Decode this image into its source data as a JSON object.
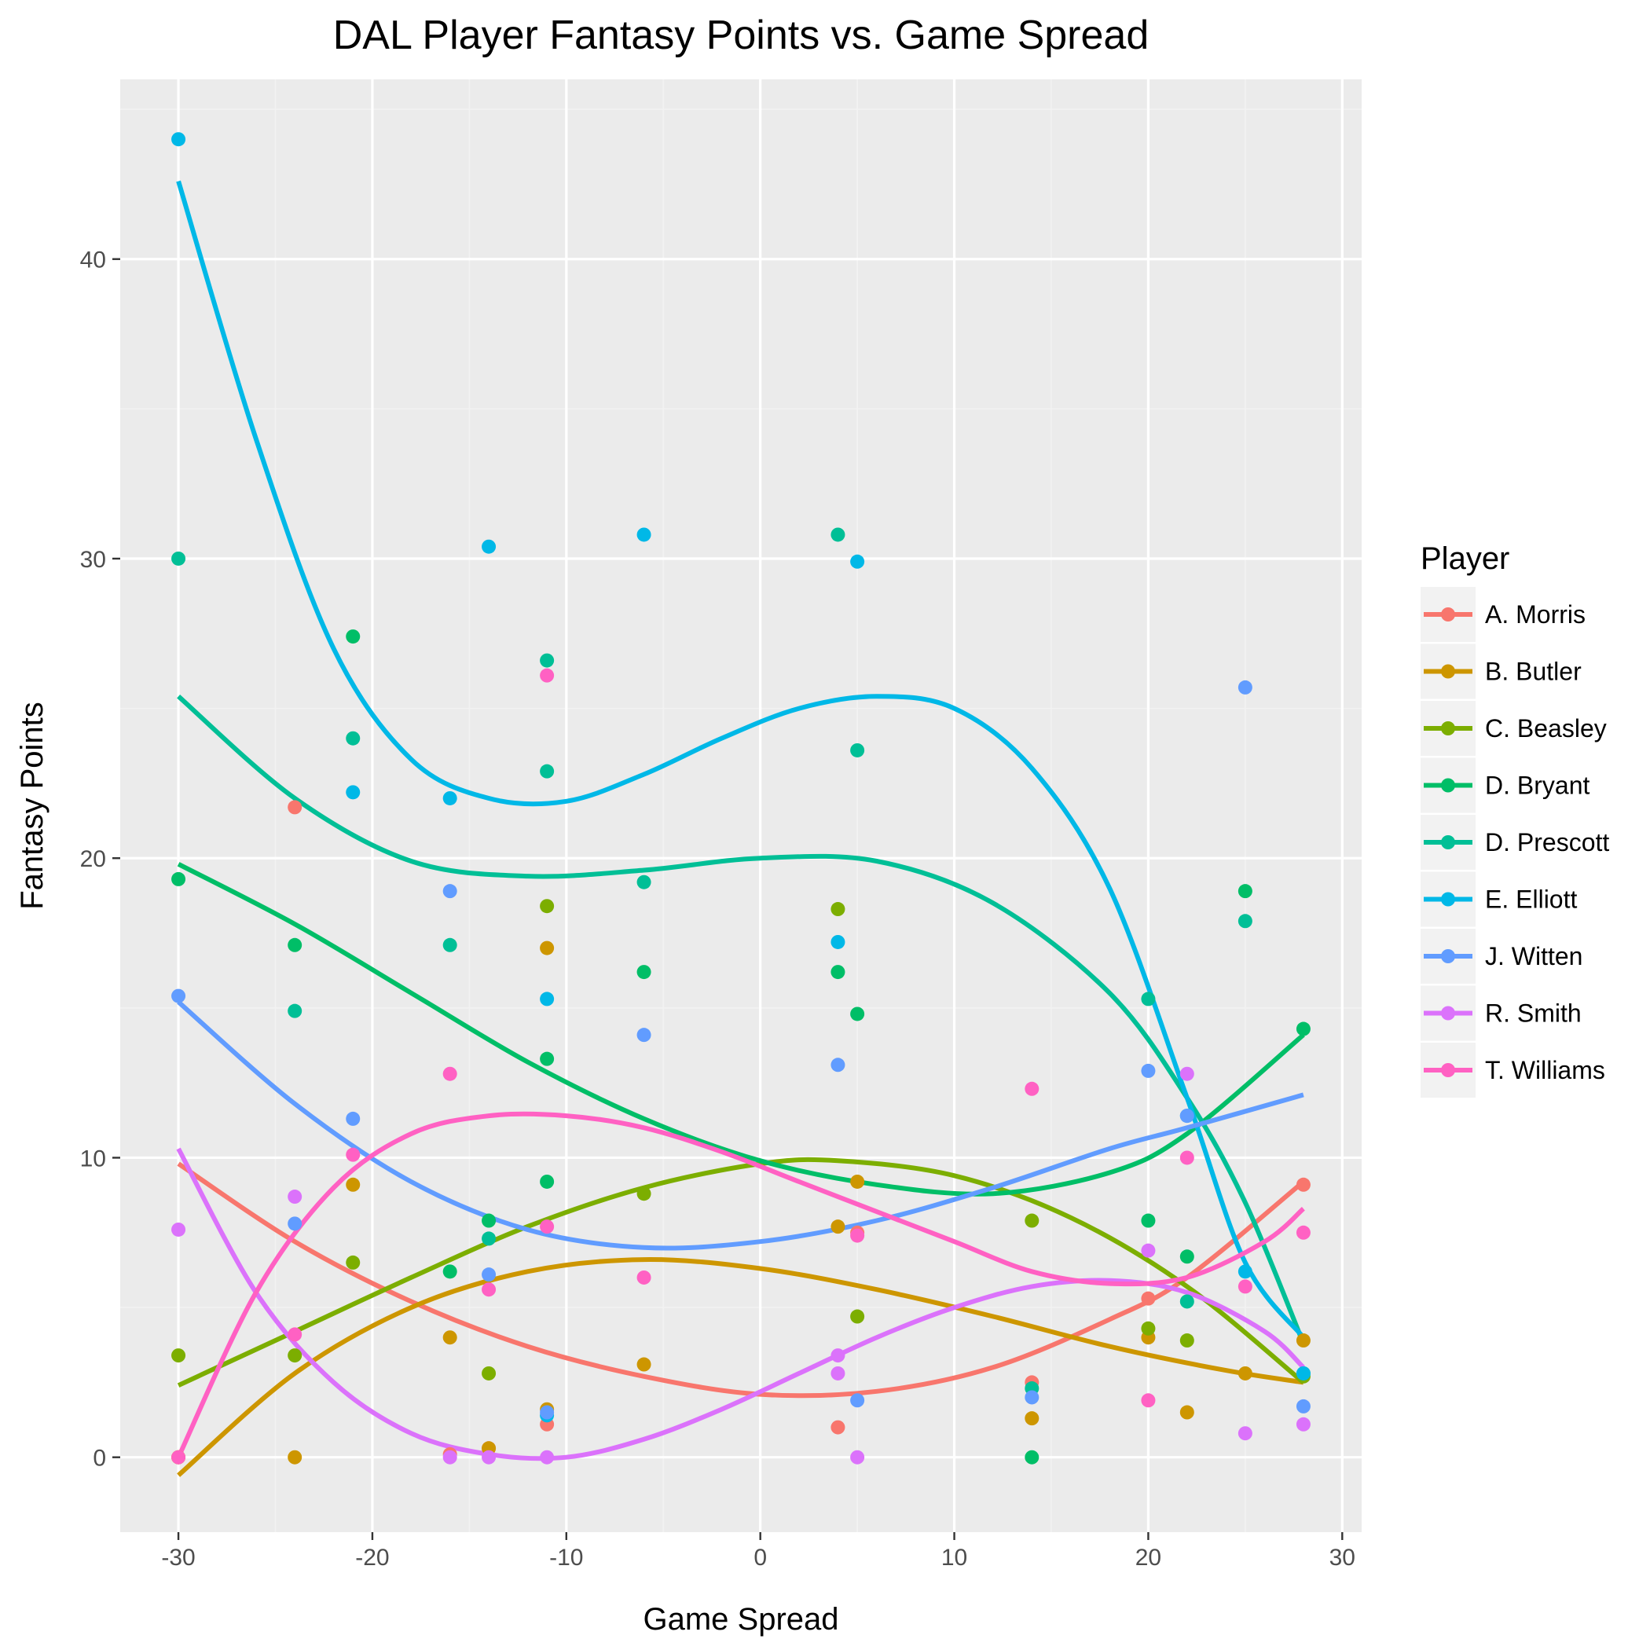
{
  "chart_data": {
    "type": "scatter",
    "title": "DAL Player Fantasy Points vs. Game Spread",
    "xlabel": "Game Spread",
    "ylabel": "Fantasy Points",
    "xlim": [
      -33,
      31
    ],
    "ylim": [
      -2.5,
      46
    ],
    "x_ticks": [
      -30,
      -20,
      -10,
      0,
      10,
      20,
      30
    ],
    "x_tick_labels": [
      "-30",
      "-20",
      "-10",
      "0",
      "10",
      "20",
      "30"
    ],
    "y_ticks": [
      0,
      10,
      20,
      30,
      40
    ],
    "y_tick_labels": [
      "0",
      "10",
      "20",
      "30",
      "40"
    ],
    "grid": true,
    "legend_title": "Player",
    "legend_position": "right",
    "trend": "loess smooth per player",
    "series": [
      {
        "name": "A. Morris",
        "color": "#F8766D",
        "points": [
          [
            -30,
            0
          ],
          [
            -24,
            21.7
          ],
          [
            -16,
            0.1
          ],
          [
            -14,
            0.3
          ],
          [
            -11,
            1.1
          ],
          [
            4,
            1.0
          ],
          [
            5,
            7.5
          ],
          [
            14,
            2.5
          ],
          [
            20,
            5.3
          ],
          [
            28,
            9.1
          ]
        ],
        "trend": [
          [
            -30,
            9.8
          ],
          [
            -24,
            7.2
          ],
          [
            -18,
            5.2
          ],
          [
            -12,
            3.7
          ],
          [
            -6,
            2.7
          ],
          [
            0,
            2.1
          ],
          [
            6,
            2.2
          ],
          [
            12,
            3.0
          ],
          [
            18,
            4.6
          ],
          [
            22,
            6.0
          ],
          [
            28,
            9.2
          ]
        ]
      },
      {
        "name": "B. Butler",
        "color": "#CD9600",
        "points": [
          [
            -30,
            0
          ],
          [
            -24,
            0
          ],
          [
            -21,
            9.1
          ],
          [
            -16,
            4.0
          ],
          [
            -14,
            0.3
          ],
          [
            -11,
            1.6
          ],
          [
            -11,
            17.0
          ],
          [
            -6,
            3.1
          ],
          [
            4,
            7.7
          ],
          [
            5,
            9.2
          ],
          [
            14,
            1.3
          ],
          [
            20,
            4.0
          ],
          [
            22,
            1.5
          ],
          [
            25,
            2.8
          ],
          [
            28,
            3.9
          ]
        ],
        "trend": [
          [
            -30,
            -0.6
          ],
          [
            -24,
            2.8
          ],
          [
            -18,
            5.0
          ],
          [
            -12,
            6.2
          ],
          [
            -6,
            6.6
          ],
          [
            0,
            6.3
          ],
          [
            6,
            5.6
          ],
          [
            12,
            4.7
          ],
          [
            18,
            3.7
          ],
          [
            24,
            2.9
          ],
          [
            28,
            2.5
          ]
        ]
      },
      {
        "name": "C. Beasley",
        "color": "#7CAE00",
        "points": [
          [
            -30,
            3.4
          ],
          [
            -24,
            3.4
          ],
          [
            -21,
            6.5
          ],
          [
            -14,
            2.8
          ],
          [
            -11,
            18.4
          ],
          [
            -6,
            8.8
          ],
          [
            4,
            18.3
          ],
          [
            5,
            4.7
          ],
          [
            14,
            7.9
          ],
          [
            20,
            4.3
          ],
          [
            22,
            3.9
          ],
          [
            28,
            2.7
          ]
        ],
        "trend": [
          [
            -30,
            2.4
          ],
          [
            -24,
            4.2
          ],
          [
            -18,
            6.0
          ],
          [
            -12,
            7.7
          ],
          [
            -6,
            9.0
          ],
          [
            0,
            9.8
          ],
          [
            4,
            9.9
          ],
          [
            10,
            9.4
          ],
          [
            16,
            8.0
          ],
          [
            22,
            5.7
          ],
          [
            28,
            2.5
          ]
        ]
      },
      {
        "name": "D. Bryant",
        "color": "#00BE67",
        "points": [
          [
            -30,
            19.3
          ],
          [
            -24,
            17.1
          ],
          [
            -21,
            27.4
          ],
          [
            -16,
            6.2
          ],
          [
            -14,
            7.9
          ],
          [
            -11,
            9.2
          ],
          [
            -11,
            13.3
          ],
          [
            -6,
            16.2
          ],
          [
            4,
            16.2
          ],
          [
            5,
            14.8
          ],
          [
            14,
            0
          ],
          [
            20,
            7.9
          ],
          [
            22,
            6.7
          ],
          [
            25,
            18.9
          ],
          [
            28,
            14.3
          ]
        ],
        "trend": [
          [
            -30,
            19.8
          ],
          [
            -24,
            17.8
          ],
          [
            -18,
            15.5
          ],
          [
            -12,
            13.2
          ],
          [
            -6,
            11.3
          ],
          [
            0,
            9.9
          ],
          [
            6,
            9.1
          ],
          [
            12,
            8.8
          ],
          [
            18,
            9.5
          ],
          [
            22,
            10.8
          ],
          [
            28,
            14.1
          ]
        ]
      },
      {
        "name": "D. Prescott",
        "color": "#00BF96",
        "points": [
          [
            -30,
            30.0
          ],
          [
            -24,
            14.9
          ],
          [
            -21,
            24.0
          ],
          [
            -16,
            17.1
          ],
          [
            -14,
            7.3
          ],
          [
            -11,
            22.9
          ],
          [
            -11,
            26.6
          ],
          [
            -6,
            19.2
          ],
          [
            4,
            30.8
          ],
          [
            5,
            23.6
          ],
          [
            14,
            2.3
          ],
          [
            20,
            15.3
          ],
          [
            22,
            5.2
          ],
          [
            25,
            17.9
          ],
          [
            28,
            2.8
          ]
        ],
        "trend": [
          [
            -30,
            25.4
          ],
          [
            -24,
            22.0
          ],
          [
            -18,
            19.9
          ],
          [
            -12,
            19.4
          ],
          [
            -6,
            19.6
          ],
          [
            0,
            20.0
          ],
          [
            6,
            19.9
          ],
          [
            12,
            18.5
          ],
          [
            18,
            15.5
          ],
          [
            22,
            12.0
          ],
          [
            25,
            8.5
          ],
          [
            28,
            3.8
          ]
        ]
      },
      {
        "name": "E. Elliott",
        "color": "#00B8E7",
        "points": [
          [
            -30,
            44.0
          ],
          [
            -21,
            22.2
          ],
          [
            -16,
            22.0
          ],
          [
            -14,
            30.4
          ],
          [
            -11,
            1.4
          ],
          [
            -11,
            15.3
          ],
          [
            -6,
            30.8
          ],
          [
            4,
            17.2
          ],
          [
            5,
            29.9
          ],
          [
            22,
            11.4
          ],
          [
            25,
            6.2
          ],
          [
            28,
            2.8
          ]
        ],
        "trend": [
          [
            -30,
            42.6
          ],
          [
            -26,
            34.0
          ],
          [
            -22,
            27.0
          ],
          [
            -18,
            23.3
          ],
          [
            -14,
            22.0
          ],
          [
            -10,
            21.9
          ],
          [
            -6,
            22.8
          ],
          [
            -2,
            24.0
          ],
          [
            2,
            25.0
          ],
          [
            6,
            25.4
          ],
          [
            10,
            25.0
          ],
          [
            14,
            23.0
          ],
          [
            18,
            19.0
          ],
          [
            22,
            12.0
          ],
          [
            25,
            6.5
          ],
          [
            28,
            4.0
          ]
        ]
      },
      {
        "name": "J. Witten",
        "color": "#619CFF",
        "points": [
          [
            -30,
            15.4
          ],
          [
            -24,
            7.8
          ],
          [
            -21,
            11.3
          ],
          [
            -16,
            18.9
          ],
          [
            -14,
            6.1
          ],
          [
            -11,
            1.5
          ],
          [
            -6,
            14.1
          ],
          [
            4,
            13.1
          ],
          [
            5,
            1.9
          ],
          [
            14,
            2.0
          ],
          [
            20,
            12.9
          ],
          [
            22,
            11.4
          ],
          [
            25,
            25.7
          ],
          [
            28,
            1.7
          ]
        ],
        "trend": [
          [
            -30,
            15.2
          ],
          [
            -24,
            11.8
          ],
          [
            -18,
            9.2
          ],
          [
            -12,
            7.6
          ],
          [
            -6,
            7.0
          ],
          [
            0,
            7.2
          ],
          [
            6,
            7.9
          ],
          [
            12,
            9.0
          ],
          [
            18,
            10.3
          ],
          [
            22,
            11.0
          ],
          [
            28,
            12.1
          ]
        ]
      },
      {
        "name": "R. Smith",
        "color": "#DB72FB",
        "points": [
          [
            -30,
            7.6
          ],
          [
            -24,
            8.7
          ],
          [
            -16,
            0
          ],
          [
            -14,
            0
          ],
          [
            -11,
            0
          ],
          [
            4,
            3.4
          ],
          [
            4,
            2.8
          ],
          [
            5,
            0
          ],
          [
            20,
            6.9
          ],
          [
            22,
            12.8
          ],
          [
            25,
            0.8
          ],
          [
            28,
            1.1
          ]
        ],
        "trend": [
          [
            -30,
            10.3
          ],
          [
            -26,
            5.5
          ],
          [
            -22,
            2.5
          ],
          [
            -18,
            0.8
          ],
          [
            -14,
            0.1
          ],
          [
            -10,
            0
          ],
          [
            -6,
            0.6
          ],
          [
            -2,
            1.6
          ],
          [
            2,
            2.8
          ],
          [
            6,
            4.0
          ],
          [
            10,
            5.0
          ],
          [
            14,
            5.7
          ],
          [
            18,
            5.9
          ],
          [
            22,
            5.5
          ],
          [
            26,
            4.2
          ],
          [
            28,
            3.0
          ]
        ]
      },
      {
        "name": "T. Williams",
        "color": "#FF61C3",
        "points": [
          [
            -30,
            0
          ],
          [
            -24,
            4.1
          ],
          [
            -21,
            10.1
          ],
          [
            -16,
            12.8
          ],
          [
            -14,
            5.6
          ],
          [
            -11,
            26.1
          ],
          [
            -11,
            7.7
          ],
          [
            -6,
            6.0
          ],
          [
            5,
            7.4
          ],
          [
            14,
            12.3
          ],
          [
            20,
            1.9
          ],
          [
            22,
            10.0
          ],
          [
            25,
            5.7
          ],
          [
            28,
            7.5
          ]
        ],
        "trend": [
          [
            -30,
            0
          ],
          [
            -26,
            5.5
          ],
          [
            -22,
            9.0
          ],
          [
            -18,
            10.8
          ],
          [
            -14,
            11.4
          ],
          [
            -10,
            11.4
          ],
          [
            -6,
            11.0
          ],
          [
            -2,
            10.2
          ],
          [
            2,
            9.2
          ],
          [
            6,
            8.2
          ],
          [
            10,
            7.2
          ],
          [
            14,
            6.2
          ],
          [
            18,
            5.8
          ],
          [
            22,
            6.0
          ],
          [
            26,
            7.2
          ],
          [
            28,
            8.3
          ]
        ]
      }
    ]
  }
}
